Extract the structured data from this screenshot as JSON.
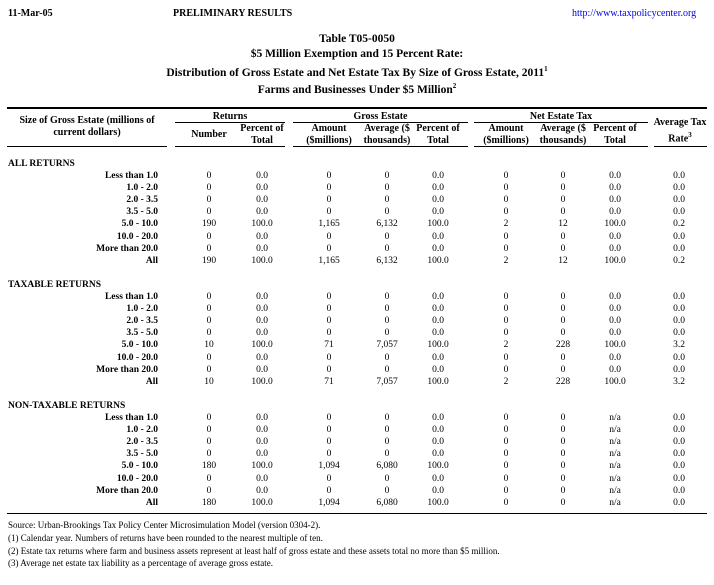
{
  "header": {
    "date": "11-Mar-05",
    "status": "PRELIMINARY RESULTS",
    "link": "http://www.taxpolicycenter.org"
  },
  "title": {
    "line1": "Table T05-0050",
    "line2": "$5 Million Exemption and 15 Percent Rate:",
    "line3": "Distribution of Gross Estate and Net Estate Tax By Size of Gross Estate, 2011",
    "line3_note": "1",
    "line4": "Farms and Businesses Under $5 Million",
    "line4_note": "2"
  },
  "columns": {
    "size_label_1": "Size of Gross Estate (millions of",
    "size_label_2": "current dollars)",
    "returns": "Returns",
    "gross_estate": "Gross Estate",
    "net_estate_tax": "Net Estate Tax",
    "avg_rate_1": "Average Tax",
    "avg_rate_2": "Rate",
    "avg_rate_note": "3",
    "sub": [
      [
        "Number",
        ""
      ],
      [
        "Percent of",
        "Total"
      ],
      [
        "Amount",
        "($millions)"
      ],
      [
        "Average ($",
        "thousands)"
      ],
      [
        "Percent of",
        "Total"
      ],
      [
        "Amount",
        "($millions)"
      ],
      [
        "Average ($",
        "thousands)"
      ],
      [
        "Percent of",
        "Total"
      ]
    ]
  },
  "sections": [
    {
      "title": "ALL RETURNS",
      "rows": [
        {
          "label": "Less than 1.0",
          "values": [
            "0",
            "0.0",
            "0",
            "0",
            "0.0",
            "0",
            "0",
            "0.0",
            "0.0"
          ]
        },
        {
          "label": "1.0 - 2.0",
          "values": [
            "0",
            "0.0",
            "0",
            "0",
            "0.0",
            "0",
            "0",
            "0.0",
            "0.0"
          ]
        },
        {
          "label": "2.0 - 3.5",
          "values": [
            "0",
            "0.0",
            "0",
            "0",
            "0.0",
            "0",
            "0",
            "0.0",
            "0.0"
          ]
        },
        {
          "label": "3.5 - 5.0",
          "values": [
            "0",
            "0.0",
            "0",
            "0",
            "0.0",
            "0",
            "0",
            "0.0",
            "0.0"
          ]
        },
        {
          "label": "5.0 - 10.0",
          "values": [
            "190",
            "100.0",
            "1,165",
            "6,132",
            "100.0",
            "2",
            "12",
            "100.0",
            "0.2"
          ]
        },
        {
          "label": "10.0 - 20.0",
          "values": [
            "0",
            "0.0",
            "0",
            "0",
            "0.0",
            "0",
            "0",
            "0.0",
            "0.0"
          ]
        },
        {
          "label": "More than 20.0",
          "values": [
            "0",
            "0.0",
            "0",
            "0",
            "0.0",
            "0",
            "0",
            "0.0",
            "0.0"
          ]
        },
        {
          "label": "All",
          "values": [
            "190",
            "100.0",
            "1,165",
            "6,132",
            "100.0",
            "2",
            "12",
            "100.0",
            "0.2"
          ]
        }
      ]
    },
    {
      "title": "TAXABLE RETURNS",
      "rows": [
        {
          "label": "Less than 1.0",
          "values": [
            "0",
            "0.0",
            "0",
            "0",
            "0.0",
            "0",
            "0",
            "0.0",
            "0.0"
          ]
        },
        {
          "label": "1.0 - 2.0",
          "values": [
            "0",
            "0.0",
            "0",
            "0",
            "0.0",
            "0",
            "0",
            "0.0",
            "0.0"
          ]
        },
        {
          "label": "2.0 - 3.5",
          "values": [
            "0",
            "0.0",
            "0",
            "0",
            "0.0",
            "0",
            "0",
            "0.0",
            "0.0"
          ]
        },
        {
          "label": "3.5 - 5.0",
          "values": [
            "0",
            "0.0",
            "0",
            "0",
            "0.0",
            "0",
            "0",
            "0.0",
            "0.0"
          ]
        },
        {
          "label": "5.0 - 10.0",
          "values": [
            "10",
            "100.0",
            "71",
            "7,057",
            "100.0",
            "2",
            "228",
            "100.0",
            "3.2"
          ]
        },
        {
          "label": "10.0 - 20.0",
          "values": [
            "0",
            "0.0",
            "0",
            "0",
            "0.0",
            "0",
            "0",
            "0.0",
            "0.0"
          ]
        },
        {
          "label": "More than 20.0",
          "values": [
            "0",
            "0.0",
            "0",
            "0",
            "0.0",
            "0",
            "0",
            "0.0",
            "0.0"
          ]
        },
        {
          "label": "All",
          "values": [
            "10",
            "100.0",
            "71",
            "7,057",
            "100.0",
            "2",
            "228",
            "100.0",
            "3.2"
          ]
        }
      ]
    },
    {
      "title": "NON-TAXABLE RETURNS",
      "rows": [
        {
          "label": "Less than 1.0",
          "values": [
            "0",
            "0.0",
            "0",
            "0",
            "0.0",
            "0",
            "0",
            "n/a",
            "0.0"
          ]
        },
        {
          "label": "1.0 - 2.0",
          "values": [
            "0",
            "0.0",
            "0",
            "0",
            "0.0",
            "0",
            "0",
            "n/a",
            "0.0"
          ]
        },
        {
          "label": "2.0 - 3.5",
          "values": [
            "0",
            "0.0",
            "0",
            "0",
            "0.0",
            "0",
            "0",
            "n/a",
            "0.0"
          ]
        },
        {
          "label": "3.5 - 5.0",
          "values": [
            "0",
            "0.0",
            "0",
            "0",
            "0.0",
            "0",
            "0",
            "n/a",
            "0.0"
          ]
        },
        {
          "label": "5.0 - 10.0",
          "values": [
            "180",
            "100.0",
            "1,094",
            "6,080",
            "100.0",
            "0",
            "0",
            "n/a",
            "0.0"
          ]
        },
        {
          "label": "10.0 - 20.0",
          "values": [
            "0",
            "0.0",
            "0",
            "0",
            "0.0",
            "0",
            "0",
            "n/a",
            "0.0"
          ]
        },
        {
          "label": "More than 20.0",
          "values": [
            "0",
            "0.0",
            "0",
            "0",
            "0.0",
            "0",
            "0",
            "n/a",
            "0.0"
          ]
        },
        {
          "label": "All",
          "values": [
            "180",
            "100.0",
            "1,094",
            "6,080",
            "100.0",
            "0",
            "0",
            "n/a",
            "0.0"
          ]
        }
      ]
    }
  ],
  "footnotes": [
    "Source: Urban-Brookings Tax Policy Center Microsimulation Model (version 0304-2).",
    "(1) Calendar year. Numbers of returns have been rounded to the nearest multiple of ten.",
    "(2) Estate tax returns where farm and business assets represent at least half of gross estate and these assets total no more than $5 million.",
    "(3) Average net estate tax liability as a percentage of average gross estate."
  ]
}
